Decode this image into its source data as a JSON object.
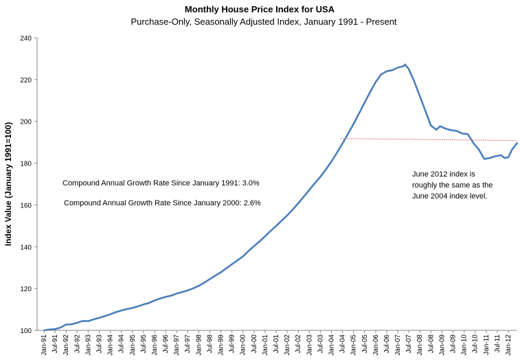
{
  "chart_data": {
    "type": "line",
    "title": "Monthly House Price Index for USA",
    "subtitle": "Purchase-Only, Seasonally Adjusted Index, January 1991 - Present",
    "xlabel": "",
    "ylabel": "Index Value (January 1991=100)",
    "ylim": [
      100,
      240
    ],
    "yticks": [
      100,
      120,
      140,
      160,
      180,
      200,
      220,
      240
    ],
    "xticks": [
      "Jan-91",
      "Jul-91",
      "Jan-92",
      "Jul-92",
      "Jan-93",
      "Jul-93",
      "Jan-94",
      "Jul-94",
      "Jan-95",
      "Jul-95",
      "Jan-96",
      "Jul-96",
      "Jan-97",
      "Jul-97",
      "Jan-98",
      "Jul-98",
      "Jan-99",
      "Jul-99",
      "Jan-00",
      "Jul-00",
      "Jan-01",
      "Jul-01",
      "Jan-02",
      "Jul-02",
      "Jan-03",
      "Jul-03",
      "Jan-04",
      "Jul-04",
      "Jan-05",
      "Jul-05",
      "Jan-06",
      "Jul-06",
      "Jan-07",
      "Jul-07",
      "Jan-08",
      "Jul-08",
      "Jan-09",
      "Jul-09",
      "Jan-10",
      "Jul-10",
      "Jan-11",
      "Jul-11",
      "Jan-12"
    ],
    "grid": false,
    "series": [
      {
        "color": "#4a7ebb",
        "x": [
          "1991-01",
          "1991-04",
          "1991-07",
          "1991-10",
          "1992-01",
          "1992-04",
          "1992-07",
          "1992-10",
          "1993-01",
          "1993-04",
          "1993-07",
          "1993-10",
          "1994-01",
          "1994-04",
          "1994-07",
          "1994-10",
          "1995-01",
          "1995-04",
          "1995-07",
          "1995-10",
          "1996-01",
          "1996-04",
          "1996-07",
          "1996-10",
          "1997-01",
          "1997-04",
          "1997-07",
          "1997-10",
          "1998-01",
          "1998-04",
          "1998-07",
          "1998-10",
          "1999-01",
          "1999-04",
          "1999-07",
          "1999-10",
          "2000-01",
          "2000-04",
          "2000-07",
          "2000-10",
          "2001-01",
          "2001-04",
          "2001-07",
          "2001-10",
          "2002-01",
          "2002-04",
          "2002-07",
          "2002-10",
          "2003-01",
          "2003-04",
          "2003-07",
          "2003-10",
          "2004-01",
          "2004-04",
          "2004-07",
          "2004-10",
          "2005-01",
          "2005-04",
          "2005-07",
          "2005-10",
          "2006-01",
          "2006-04",
          "2006-07",
          "2006-10",
          "2007-01",
          "2007-04",
          "2007-05",
          "2007-07",
          "2007-10",
          "2008-01",
          "2008-04",
          "2008-07",
          "2008-10",
          "2008-12",
          "2009-03",
          "2009-06",
          "2009-09",
          "2009-12",
          "2010-03",
          "2010-06",
          "2010-09",
          "2010-12",
          "2011-03",
          "2011-06",
          "2011-09",
          "2011-11",
          "2012-01",
          "2012-03",
          "2012-06"
        ],
        "values": [
          100.0,
          100.4,
          100.6,
          101.3,
          102.8,
          102.9,
          103.6,
          104.5,
          104.4,
          105.3,
          106.0,
          106.8,
          107.7,
          108.7,
          109.5,
          110.2,
          110.7,
          111.5,
          112.4,
          113.1,
          114.3,
          115.2,
          116.0,
          116.6,
          117.6,
          118.3,
          119.1,
          120.1,
          121.3,
          122.8,
          124.5,
          126.2,
          127.8,
          129.7,
          131.6,
          133.5,
          135.4,
          138.0,
          140.3,
          142.6,
          145.0,
          147.6,
          150.0,
          152.5,
          155.0,
          157.8,
          160.8,
          164.0,
          167.2,
          170.4,
          173.5,
          177.0,
          180.8,
          185.0,
          189.4,
          194.0,
          198.8,
          203.8,
          209.0,
          214.0,
          218.8,
          222.5,
          224.0,
          224.5,
          225.7,
          226.4,
          227.2,
          225.0,
          219.0,
          212.0,
          205.0,
          198.0,
          196.0,
          197.7,
          196.5,
          195.8,
          195.4,
          194.2,
          193.9,
          189.7,
          186.5,
          182.0,
          182.5,
          183.3,
          183.8,
          182.5,
          182.8,
          186.5,
          189.9
        ]
      },
      {
        "color": "#e07a7a",
        "x": [
          "2004-06",
          "2012-06"
        ],
        "values": [
          191.8,
          190.8
        ]
      }
    ],
    "annotations": [
      {
        "text": "Compound Annual Growth Rate Since January 1991:  3.0%"
      },
      {
        "text": "Compound Annual Growth Rate Since January 2000:  2.6%"
      },
      {
        "text": "June 2012 index is"
      },
      {
        "text": "roughly the same as the"
      },
      {
        "text": "June 2004 index level."
      }
    ]
  }
}
